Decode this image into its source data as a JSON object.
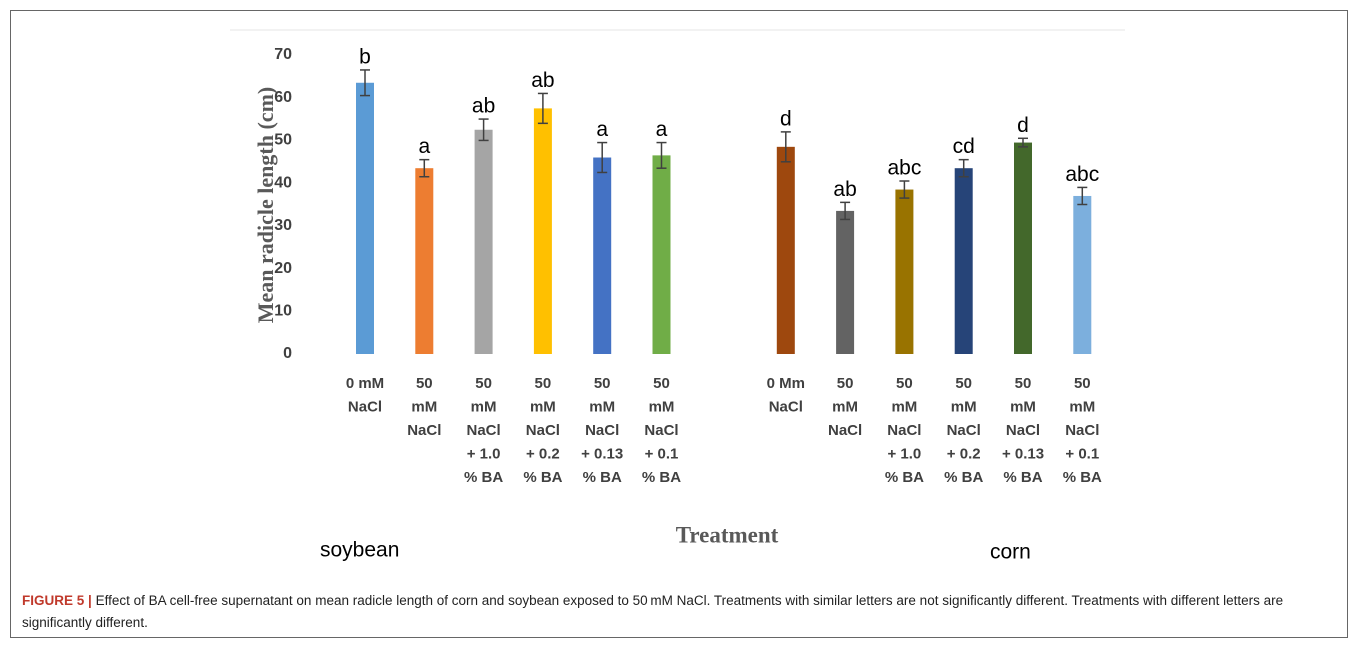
{
  "chart_data": {
    "type": "bar",
    "ylabel": "Mean radicle length (cm)",
    "xlabel": "Treatment",
    "groups": [
      "soybean",
      "corn"
    ],
    "categories": [
      [
        "0 mM",
        "NaCl"
      ],
      [
        "50",
        "mM",
        "NaCl"
      ],
      [
        "50",
        "mM",
        "NaCl",
        "+ 1.0",
        "% BA"
      ],
      [
        "50",
        "mM",
        "NaCl",
        "+ 0.2",
        "% BA"
      ],
      [
        "50",
        "mM",
        "NaCl",
        "+ 0.13",
        "% BA"
      ],
      [
        "50",
        "mM",
        "NaCl",
        "+ 0.1",
        "% BA"
      ],
      [
        "0 Mm",
        "NaCl"
      ],
      [
        "50",
        "mM",
        "NaCl"
      ],
      [
        "50",
        "mM",
        "NaCl",
        "+ 1.0",
        "% BA"
      ],
      [
        "50",
        "mM",
        "NaCl",
        "+ 0.2",
        "% BA"
      ],
      [
        "50",
        "mM",
        "NaCl",
        "+ 0.13",
        "% BA"
      ],
      [
        "50",
        "mM",
        "NaCl",
        "+ 0.1",
        "% BA"
      ]
    ],
    "values": [
      63.5,
      43.5,
      52.5,
      57.5,
      46,
      46.5,
      48.5,
      33.5,
      38.5,
      43.5,
      49.5,
      37
    ],
    "errors": [
      3,
      2,
      2.5,
      3.5,
      3.5,
      3,
      3.5,
      2,
      2,
      2,
      1,
      2
    ],
    "letters": [
      "b",
      "a",
      "ab",
      "ab",
      "a",
      "a",
      "d",
      "ab",
      "abc",
      "cd",
      "d",
      "abc"
    ],
    "colors": [
      "#5b9bd5",
      "#ed7d31",
      "#a5a5a5",
      "#ffc000",
      "#4472c4",
      "#70ad47",
      "#9e480e",
      "#636363",
      "#997300",
      "#264478",
      "#43682b",
      "#7cafdd"
    ],
    "ylim": [
      0,
      70
    ],
    "yticks": [
      0,
      10,
      20,
      30,
      40,
      50,
      60,
      70
    ]
  },
  "caption": {
    "label": "FIGURE 5 |",
    "text": "Effect of BA cell-free supernatant on mean radicle length of corn and soybean exposed to 50 mM NaCl. Treatments with similar letters are not significantly different. Treatments with different letters are significantly different."
  }
}
